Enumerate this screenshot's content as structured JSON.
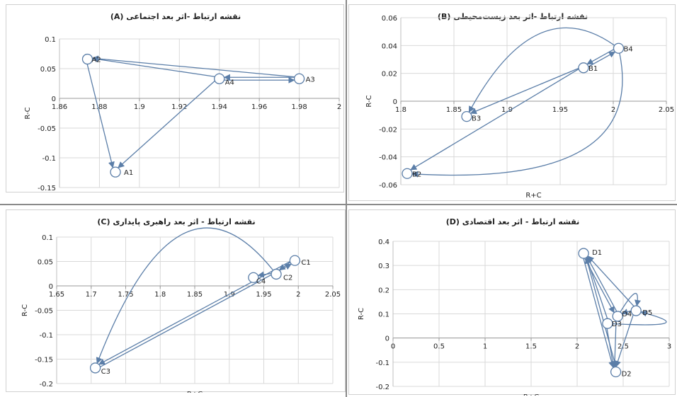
{
  "chart_data": [
    {
      "id": "A",
      "type": "scatter",
      "title": "نقشه ارتباط -اثر بعد اجتماعی (A)",
      "xlabel": "R+C",
      "ylabel": "R-C",
      "xlim": [
        1.86,
        2
      ],
      "ylim": [
        -0.15,
        0.1
      ],
      "xticks": [
        1.86,
        1.88,
        1.9,
        1.92,
        1.94,
        1.96,
        1.98,
        2
      ],
      "xticklabels": [
        "1.86",
        "1.88",
        "1.9",
        "1.92",
        "1.94",
        "1.96",
        "1.98",
        "2"
      ],
      "yticks": [
        -0.15,
        -0.1,
        -0.05,
        0,
        0.05,
        0.1
      ],
      "yticklabels": [
        "-0.15",
        "-0.1",
        "-0.05",
        "0",
        "0.05",
        "0.1"
      ],
      "grid": true,
      "points": [
        {
          "label": "A1",
          "x": 1.888,
          "y": -0.124
        },
        {
          "label": "A2",
          "x": 1.874,
          "y": 0.066
        },
        {
          "label": "A3",
          "x": 1.98,
          "y": 0.033
        },
        {
          "label": "A4",
          "x": 1.94,
          "y": 0.033
        }
      ],
      "arrows": [
        {
          "from": "A2",
          "to": "A1"
        },
        {
          "from": "A3",
          "to": "A2"
        },
        {
          "from": "A4",
          "to": "A2"
        },
        {
          "from": "A4",
          "to": "A3"
        },
        {
          "from": "A3",
          "to": "A4"
        },
        {
          "from": "A4",
          "to": "A1"
        }
      ]
    },
    {
      "id": "B",
      "type": "scatter",
      "title": "نقشه ارتباط -اثر بعد زیست‌محیطی (B)",
      "xlabel": "R+C",
      "ylabel": "R-C",
      "xlim": [
        1.8,
        2.05
      ],
      "ylim": [
        -0.06,
        0.06
      ],
      "xticks": [
        1.8,
        1.85,
        1.9,
        1.95,
        2,
        2.05
      ],
      "xticklabels": [
        "1.8",
        "1.85",
        "1.9",
        "1.95",
        "2",
        "2.05"
      ],
      "yticks": [
        -0.06,
        -0.04,
        -0.02,
        0,
        0.02,
        0.04,
        0.06
      ],
      "yticklabels": [
        "-0.06",
        "-0.04",
        "-0.02",
        "0",
        "0.02",
        "0.04",
        "0.06"
      ],
      "grid": true,
      "points": [
        {
          "label": "B1",
          "x": 1.972,
          "y": 0.024
        },
        {
          "label": "B2",
          "x": 1.806,
          "y": -0.052
        },
        {
          "label": "B3",
          "x": 1.862,
          "y": -0.011
        },
        {
          "label": "B4",
          "x": 2.005,
          "y": 0.038
        }
      ],
      "arrows": [
        {
          "from": "B4",
          "to": "B1",
          "curve": 0
        },
        {
          "from": "B1",
          "to": "B4",
          "curve": 0
        },
        {
          "from": "B1",
          "to": "B3",
          "curve": 0
        },
        {
          "from": "B1",
          "to": "B2",
          "curve": 0
        },
        {
          "from": "B4",
          "to": "B3",
          "curve": 1
        },
        {
          "from": "B4",
          "to": "B2",
          "curve": 2
        }
      ]
    },
    {
      "id": "C",
      "type": "scatter",
      "title": "نقشه ارتباط - اثر بعد راهبری پایداری (C)",
      "xlabel": "R+C",
      "ylabel": "R-C",
      "xlim": [
        1.65,
        2.05
      ],
      "ylim": [
        -0.2,
        0.1
      ],
      "xticks": [
        1.65,
        1.7,
        1.75,
        1.8,
        1.85,
        1.9,
        1.95,
        2,
        2.05
      ],
      "xticklabels": [
        "1.65",
        "1.7",
        "1.75",
        "1.8",
        "1.85",
        "1.9",
        "1.95",
        "2",
        "2.05"
      ],
      "yticks": [
        -0.2,
        -0.15,
        -0.1,
        -0.05,
        0,
        0.05,
        0.1
      ],
      "yticklabels": [
        "-0.2",
        "-0.15",
        "-0.1",
        "-0.05",
        "0",
        "0.05",
        "0.1"
      ],
      "grid": true,
      "points": [
        {
          "label": "C1",
          "x": 1.995,
          "y": 0.052
        },
        {
          "label": "C2",
          "x": 1.968,
          "y": 0.024
        },
        {
          "label": "C3",
          "x": 1.706,
          "y": -0.168
        },
        {
          "label": "C4",
          "x": 1.935,
          "y": 0.017
        }
      ],
      "arrows": [
        {
          "from": "C1",
          "to": "C2",
          "curve": 0
        },
        {
          "from": "C2",
          "to": "C4",
          "curve": 0
        },
        {
          "from": "C3",
          "to": "C1",
          "curve": 0
        },
        {
          "from": "C1",
          "to": "C3",
          "curve": 0
        },
        {
          "from": "C2",
          "to": "C3",
          "curve": 1
        }
      ]
    },
    {
      "id": "D",
      "type": "scatter",
      "title": "نقشه ارتباط - اثر بعد اقتصادی (D)",
      "xlabel": "R+C",
      "ylabel": "R-C",
      "xlim": [
        0,
        3
      ],
      "ylim": [
        -0.2,
        0.4
      ],
      "xticks": [
        0,
        0.5,
        1,
        1.5,
        2,
        2.5,
        3
      ],
      "xticklabels": [
        "0",
        "0.5",
        "1",
        "1.5",
        "2",
        "2.5",
        "3"
      ],
      "yticks": [
        -0.2,
        -0.1,
        0,
        0.1,
        0.2,
        0.3,
        0.4
      ],
      "yticklabels": [
        "-0.2",
        "-0.1",
        "0",
        "0.1",
        "0.2",
        "0.3",
        "0.4"
      ],
      "grid": true,
      "points": [
        {
          "label": "D1",
          "x": 2.07,
          "y": 0.35
        },
        {
          "label": "D2",
          "x": 2.42,
          "y": -0.14
        },
        {
          "label": "D3",
          "x": 2.33,
          "y": 0.06
        },
        {
          "label": "D4",
          "x": 2.44,
          "y": 0.09
        },
        {
          "label": "D5",
          "x": 2.64,
          "y": 0.113
        }
      ],
      "arrows": [
        {
          "from": "D1",
          "to": "D4",
          "curve": 0
        },
        {
          "from": "D4",
          "to": "D1",
          "curve": 0
        },
        {
          "from": "D5",
          "to": "D1",
          "curve": 0
        },
        {
          "from": "D1",
          "to": "D2",
          "curve": 0
        },
        {
          "from": "D2",
          "to": "D1",
          "curve": 0
        },
        {
          "from": "D3",
          "to": "D1",
          "curve": 0
        },
        {
          "from": "D4",
          "to": "D2",
          "curve": 0
        },
        {
          "from": "D5",
          "to": "D2",
          "curve": 0
        },
        {
          "from": "D3",
          "to": "D2",
          "curve": 0
        },
        {
          "from": "D5",
          "to": "D4",
          "curve": 0
        },
        {
          "from": "D4",
          "to": "D5",
          "curve": 1
        },
        {
          "from": "D3",
          "to": "D5",
          "curve": 2
        }
      ]
    }
  ],
  "style": {
    "line_color": "#5b7ea8",
    "marker_stroke": "#5b7ea8",
    "marker_fill": "#ffffff",
    "grid_color": "#d9d9d9",
    "text_color": "#222222",
    "separator_color": "#8a8a8a"
  }
}
